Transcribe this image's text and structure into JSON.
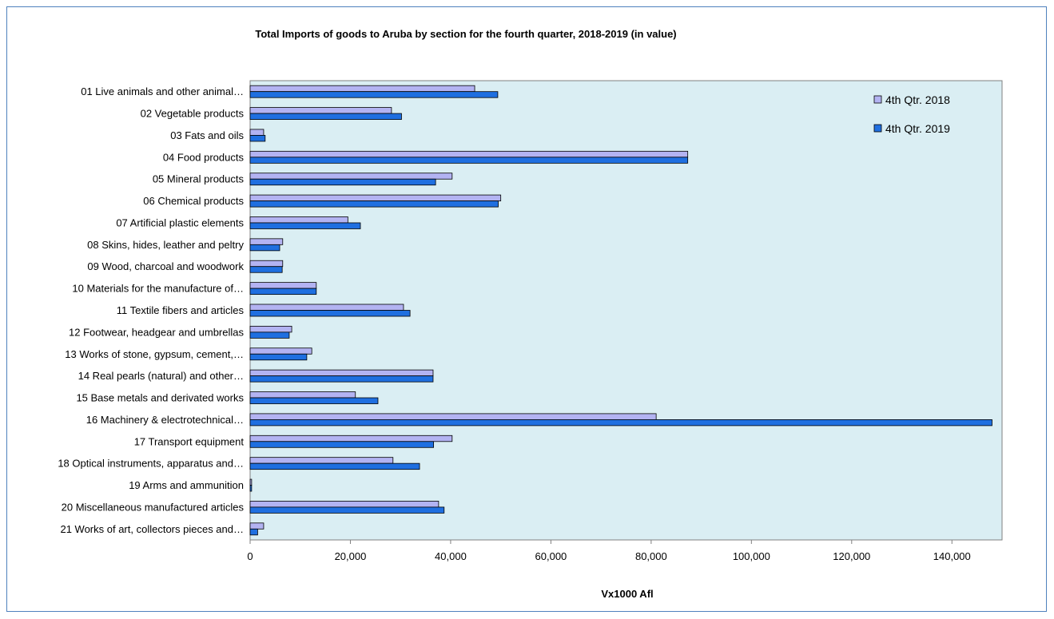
{
  "chart_data": {
    "type": "bar",
    "orientation": "horizontal",
    "title": "Total Imports of goods to Aruba by section for the fourth quarter, 2018-2019 (in value)",
    "xlabel": "Vx1000 Afl",
    "ylabel": "",
    "xlim": [
      0,
      150000
    ],
    "xticks": [
      "0",
      "20,000",
      "40,000",
      "60,000",
      "80,000",
      "100,000",
      "120,000",
      "140,000"
    ],
    "xtick_values": [
      0,
      20000,
      40000,
      60000,
      80000,
      100000,
      120000,
      140000
    ],
    "grid": false,
    "legend_position": "top-right",
    "plot_background": "#daeef3",
    "categories": [
      "01 Live animals and other animal…",
      "02 Vegetable products",
      "03 Fats and oils",
      "04 Food products",
      "05 Mineral products",
      "06 Chemical products",
      "07 Artificial plastic elements",
      "08 Skins, hides, leather and peltry",
      "09 Wood, charcoal and woodwork",
      "10 Materials for the manufacture of…",
      "11 Textile fibers and articles",
      "12 Footwear, headgear and umbrellas",
      "13 Works of stone, gypsum, cement,…",
      "14 Real pearls (natural) and other…",
      "15 Base metals and derivated works",
      "16 Machinery & electrotechnical…",
      "17 Transport equipment",
      "18 Optical instruments, apparatus and…",
      "19 Arms and ammunition",
      "20 Miscellaneous manufactured articles",
      "21 Works of art, collectors pieces and…"
    ],
    "series": [
      {
        "name": "4th Qtr. 2018",
        "color": "#b3b3f2",
        "values": [
          44800,
          28200,
          2700,
          87300,
          40300,
          50000,
          19500,
          6500,
          6500,
          13200,
          30600,
          8300,
          12300,
          36500,
          21000,
          81000,
          40300,
          28500,
          300,
          37600,
          2700
        ]
      },
      {
        "name": "4th Qtr. 2019",
        "color": "#1f6fe0",
        "values": [
          49400,
          30200,
          3000,
          87300,
          37000,
          49500,
          22000,
          5900,
          6400,
          13200,
          31900,
          7800,
          11300,
          36500,
          25500,
          148000,
          36600,
          33800,
          300,
          38700,
          1500
        ]
      }
    ]
  }
}
